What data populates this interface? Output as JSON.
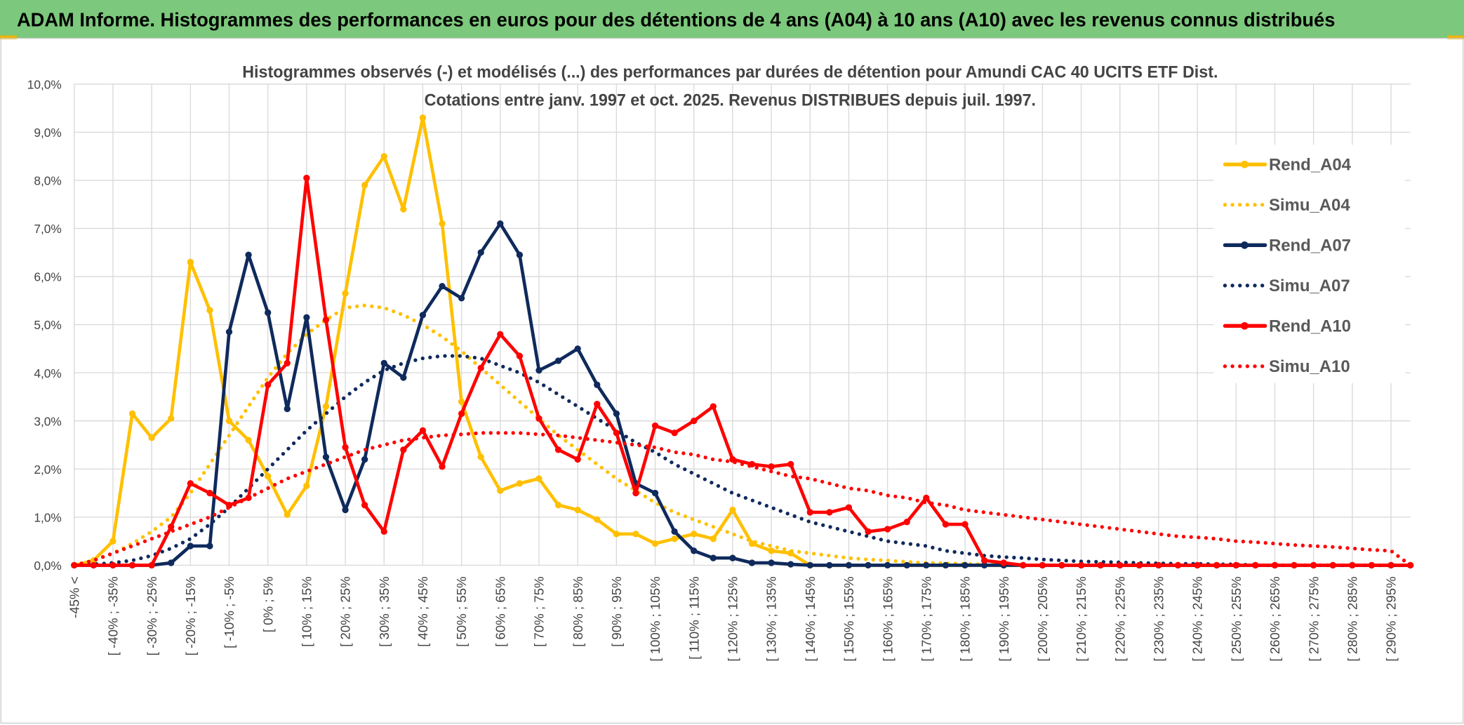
{
  "header": {
    "title": "ADAM Informe. Histogrammes des performances en euros pour des détentions de 4 ans (A04) à 10 ans (A10) avec les revenus connus distribués"
  },
  "chart_data": {
    "type": "line",
    "title": "Histogrammes observés (-) et modélisés (...) des performances par durées de détention pour Amundi CAC 40 UCITS ETF Dist.",
    "subtitle": "Cotations entre janv. 1997 et oct. 2025. Revenus DISTRIBUES depuis juil. 1997.",
    "categories": [
      "-45% <",
      null,
      "[ -40% ; -35%",
      null,
      "[ -30% ; -25%",
      null,
      "[ -20% ; -15%",
      null,
      "[ -10% ; -5%",
      null,
      "[ 0% ; 5%",
      null,
      "[ 10% ; 15%",
      null,
      "[ 20% ; 25%",
      null,
      "[ 30% ; 35%",
      null,
      "[ 40% ; 45%",
      null,
      "[ 50% ; 55%",
      null,
      "[ 60% ; 65%",
      null,
      "[ 70% ; 75%",
      null,
      "[ 80% ; 85%",
      null,
      "[ 90% ; 95%",
      null,
      "[ 100% ; 105%",
      null,
      "[ 110% ; 115%",
      null,
      "[ 120% ; 125%",
      null,
      "[ 130% ; 135%",
      null,
      "[ 140% ; 145%",
      null,
      "[ 150% ; 155%",
      null,
      "[ 160% ; 165%",
      null,
      "[ 170% ; 175%",
      null,
      "[ 180% ; 185%",
      null,
      "[ 190% ; 195%",
      null,
      "[ 200% ; 205%",
      null,
      "[ 210% ; 215%",
      null,
      "[ 220% ; 225%",
      null,
      "[ 230% ; 235%",
      null,
      "[ 240% ; 245%",
      null,
      "[ 250% ; 255%",
      null,
      "[ 260% ; 265%",
      null,
      "[ 270% ; 275%",
      null,
      "[ 280% ; 285%",
      null,
      "[ 290% ; 295%",
      null
    ],
    "series": [
      {
        "name": "Rend_A04",
        "color": "#ffc000",
        "style": "solid",
        "marker": true,
        "values": [
          0,
          0.1,
          0.5,
          3.15,
          2.65,
          3.05,
          6.3,
          5.3,
          3.0,
          2.6,
          1.85,
          1.05,
          1.65,
          3.3,
          5.65,
          7.9,
          8.5,
          7.4,
          9.3,
          7.1,
          3.4,
          2.25,
          1.55,
          1.7,
          1.8,
          1.25,
          1.15,
          0.95,
          0.65,
          0.65,
          0.45,
          0.55,
          0.65,
          0.55,
          1.15,
          0.45,
          0.3,
          0.25,
          0,
          0,
          0,
          0,
          0,
          0,
          0,
          0,
          0,
          0,
          0,
          0,
          0,
          0,
          0,
          0,
          0,
          0,
          0,
          0,
          0,
          0,
          0,
          0,
          0,
          0,
          0,
          0,
          0,
          0,
          0,
          0
        ]
      },
      {
        "name": "Simu_A04",
        "color": "#ffc000",
        "style": "dotted",
        "marker": false,
        "values": [
          0,
          0.1,
          0.25,
          0.45,
          0.7,
          1.0,
          1.5,
          2.1,
          2.7,
          3.3,
          3.9,
          4.4,
          4.8,
          5.1,
          5.35,
          5.4,
          5.35,
          5.2,
          5.0,
          4.75,
          4.45,
          4.1,
          3.75,
          3.4,
          3.05,
          2.7,
          2.4,
          2.1,
          1.8,
          1.55,
          1.3,
          1.1,
          0.95,
          0.8,
          0.65,
          0.5,
          0.4,
          0.3,
          0.25,
          0.2,
          0.15,
          0.12,
          0.1,
          0.07,
          0.05,
          0.04,
          0.03,
          0.02,
          0.01,
          0,
          0,
          0,
          0,
          0,
          0,
          0,
          0,
          0,
          0,
          0,
          0,
          0,
          0,
          0,
          0,
          0,
          0,
          0,
          0,
          0
        ]
      },
      {
        "name": "Rend_A07",
        "color": "#0f2a5c",
        "style": "solid",
        "marker": true,
        "values": [
          0,
          0,
          0,
          0,
          0,
          0.05,
          0.4,
          0.4,
          4.85,
          6.45,
          5.25,
          3.25,
          5.15,
          2.25,
          1.15,
          2.2,
          4.2,
          3.9,
          5.2,
          5.8,
          5.55,
          6.5,
          7.1,
          6.45,
          4.05,
          4.25,
          4.5,
          3.75,
          3.15,
          1.7,
          1.5,
          0.7,
          0.3,
          0.15,
          0.15,
          0.05,
          0.05,
          0.02,
          0,
          0,
          0,
          0,
          0,
          0,
          0,
          0,
          0,
          0,
          0,
          0,
          0,
          0,
          0,
          0,
          0,
          0,
          0,
          0,
          0,
          0,
          0,
          0,
          0,
          0,
          0,
          0,
          0,
          0,
          0,
          0
        ]
      },
      {
        "name": "Simu_A07",
        "color": "#0f2a5c",
        "style": "dotted",
        "marker": false,
        "values": [
          0,
          0.02,
          0.05,
          0.1,
          0.2,
          0.35,
          0.55,
          0.85,
          1.2,
          1.6,
          2.0,
          2.4,
          2.8,
          3.15,
          3.5,
          3.8,
          4.05,
          4.2,
          4.3,
          4.35,
          4.35,
          4.3,
          4.15,
          4.0,
          3.8,
          3.55,
          3.3,
          3.05,
          2.8,
          2.55,
          2.35,
          2.1,
          1.9,
          1.7,
          1.5,
          1.35,
          1.2,
          1.05,
          0.9,
          0.8,
          0.7,
          0.6,
          0.5,
          0.45,
          0.4,
          0.3,
          0.25,
          0.2,
          0.17,
          0.15,
          0.12,
          0.1,
          0.08,
          0.07,
          0.06,
          0.05,
          0.04,
          0.03,
          0.03,
          0.02,
          0.02,
          0,
          0,
          0,
          0,
          0,
          0,
          0,
          0,
          0
        ]
      },
      {
        "name": "Rend_A10",
        "color": "#ff0000",
        "style": "solid",
        "marker": true,
        "values": [
          0,
          0,
          0,
          0,
          0,
          0.8,
          1.7,
          1.5,
          1.25,
          1.4,
          3.75,
          4.2,
          8.05,
          5.1,
          2.45,
          1.25,
          0.7,
          2.4,
          2.8,
          2.05,
          3.15,
          4.1,
          4.8,
          4.35,
          3.05,
          2.4,
          2.2,
          3.35,
          2.75,
          1.5,
          2.9,
          2.75,
          3.0,
          3.3,
          2.2,
          2.1,
          2.05,
          2.1,
          1.1,
          1.1,
          1.2,
          0.7,
          0.75,
          0.9,
          1.4,
          0.85,
          0.85,
          0.1,
          0.05,
          0,
          0,
          0,
          0,
          0,
          0,
          0,
          0,
          0,
          0,
          0,
          0,
          0,
          0,
          0,
          0,
          0,
          0,
          0,
          0,
          0
        ]
      },
      {
        "name": "Simu_A10",
        "color": "#ff0000",
        "style": "dotted",
        "marker": false,
        "values": [
          0,
          0.1,
          0.25,
          0.4,
          0.55,
          0.7,
          0.85,
          1.0,
          1.2,
          1.4,
          1.6,
          1.8,
          1.95,
          2.1,
          2.25,
          2.4,
          2.5,
          2.6,
          2.65,
          2.7,
          2.72,
          2.75,
          2.75,
          2.75,
          2.72,
          2.7,
          2.65,
          2.6,
          2.55,
          2.5,
          2.45,
          2.35,
          2.3,
          2.2,
          2.15,
          2.05,
          1.95,
          1.85,
          1.8,
          1.7,
          1.6,
          1.55,
          1.45,
          1.4,
          1.3,
          1.25,
          1.15,
          1.1,
          1.05,
          1.0,
          0.95,
          0.9,
          0.85,
          0.8,
          0.75,
          0.7,
          0.65,
          0.6,
          0.58,
          0.55,
          0.5,
          0.48,
          0.45,
          0.42,
          0.4,
          0.38,
          0.35,
          0.32,
          0.3,
          0
        ]
      }
    ],
    "ylim": [
      0,
      10
    ],
    "yticks": [
      {
        "value": 0,
        "label": "0,0%"
      },
      {
        "value": 1,
        "label": "1,0%"
      },
      {
        "value": 2,
        "label": "2,0%"
      },
      {
        "value": 3,
        "label": "3,0%"
      },
      {
        "value": 4,
        "label": "4,0%"
      },
      {
        "value": 5,
        "label": "5,0%"
      },
      {
        "value": 6,
        "label": "6,0%"
      },
      {
        "value": 7,
        "label": "7,0%"
      },
      {
        "value": 8,
        "label": "8,0%"
      },
      {
        "value": 9,
        "label": "9,0%"
      },
      {
        "value": 10,
        "label": "10,0%"
      }
    ],
    "grid": true,
    "legend": "right"
  }
}
